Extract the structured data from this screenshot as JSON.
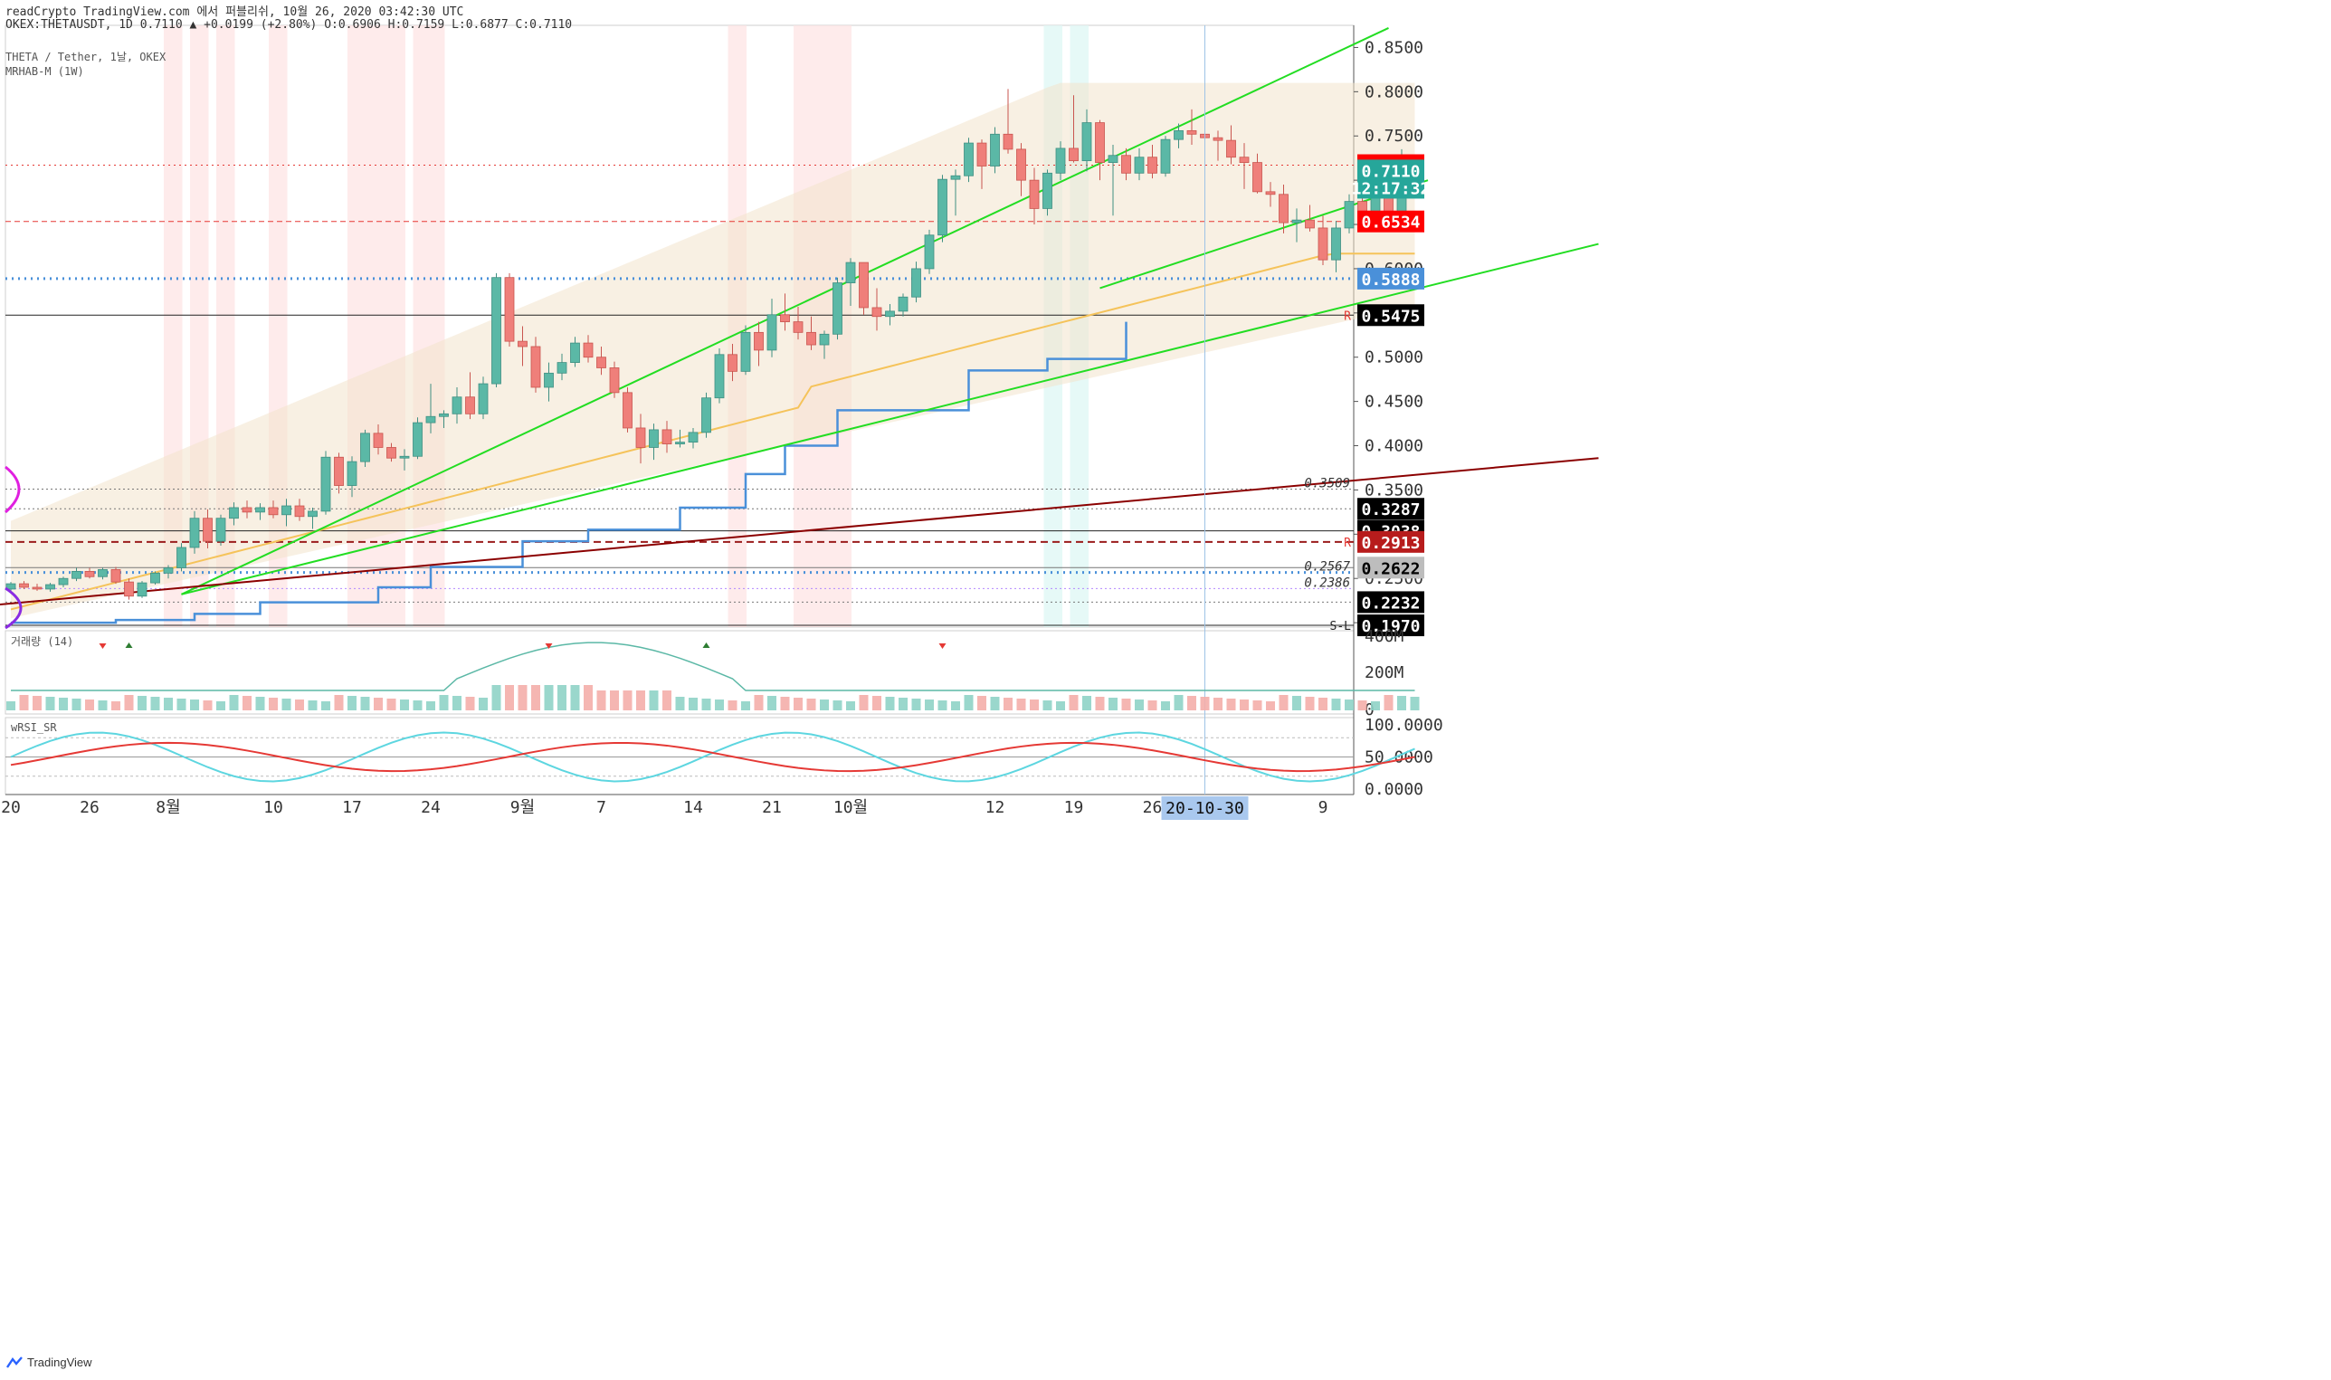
{
  "header": {
    "line1": "readCrypto TradingView.com 에서 퍼블리쉬, 10월 26, 2020 03:42:30 UTC",
    "line2": "OKEX:THETAUSDT, 1D 0.7110 ▲ +0.0199 (+2.80%) O:0.6906 H:0.7159 L:0.6877 C:0.7110",
    "legend_symbol": "THETA / Tether, 1날, OKEX",
    "legend_indicator": "MRHAB-M (1W)"
  },
  "footer": {
    "brand": "TradingView"
  },
  "colors": {
    "up": "#5bb8a6",
    "down": "#ef7f7a",
    "green_line": "#22dd22",
    "blue_line": "#4a90d9",
    "red_line": "#8b0000",
    "yellow_line": "#f5c35a"
  },
  "chart_data": [
    {
      "type": "candlestick",
      "symbol": "OKEX:THETAUSDT",
      "interval": "1D",
      "ylim": [
        0.195,
        0.875
      ],
      "y_axis_ticks": [
        0.2,
        0.25,
        0.3,
        0.35,
        0.4,
        0.45,
        0.5,
        0.55,
        0.6,
        0.65,
        0.7,
        0.75,
        0.8,
        0.85
      ],
      "x_axis_ticks": [
        "20",
        "26",
        "8월",
        "10",
        "17",
        "24",
        "9월",
        "7",
        "14",
        "21",
        "10월",
        "12",
        "19",
        "26",
        "2",
        "9"
      ],
      "x_tick_bars": [
        0,
        6,
        12,
        20,
        26,
        32,
        39,
        45,
        52,
        58,
        64,
        75,
        81,
        87,
        94,
        100
      ],
      "crosshair_date": "20-10-30",
      "crosshair_bar": 91,
      "candles_ohlc": [
        [
          0.238,
          0.246,
          0.235,
          0.244
        ],
        [
          0.244,
          0.247,
          0.238,
          0.24
        ],
        [
          0.24,
          0.244,
          0.236,
          0.238
        ],
        [
          0.238,
          0.245,
          0.235,
          0.243
        ],
        [
          0.243,
          0.252,
          0.24,
          0.25
        ],
        [
          0.25,
          0.262,
          0.247,
          0.258
        ],
        [
          0.258,
          0.262,
          0.25,
          0.252
        ],
        [
          0.252,
          0.262,
          0.249,
          0.26
        ],
        [
          0.26,
          0.263,
          0.244,
          0.246
        ],
        [
          0.246,
          0.25,
          0.226,
          0.23
        ],
        [
          0.23,
          0.247,
          0.228,
          0.245
        ],
        [
          0.245,
          0.258,
          0.243,
          0.256
        ],
        [
          0.256,
          0.265,
          0.25,
          0.262
        ],
        [
          0.262,
          0.29,
          0.258,
          0.285
        ],
        [
          0.285,
          0.326,
          0.278,
          0.318
        ],
        [
          0.318,
          0.328,
          0.284,
          0.292
        ],
        [
          0.292,
          0.322,
          0.287,
          0.318
        ],
        [
          0.318,
          0.336,
          0.31,
          0.33
        ],
        [
          0.33,
          0.338,
          0.318,
          0.325
        ],
        [
          0.325,
          0.335,
          0.316,
          0.33
        ],
        [
          0.33,
          0.338,
          0.318,
          0.322
        ],
        [
          0.322,
          0.34,
          0.309,
          0.332
        ],
        [
          0.332,
          0.34,
          0.315,
          0.32
        ],
        [
          0.32,
          0.33,
          0.306,
          0.326
        ],
        [
          0.326,
          0.394,
          0.322,
          0.387
        ],
        [
          0.387,
          0.392,
          0.346,
          0.355
        ],
        [
          0.355,
          0.388,
          0.342,
          0.382
        ],
        [
          0.382,
          0.418,
          0.376,
          0.414
        ],
        [
          0.414,
          0.424,
          0.39,
          0.398
        ],
        [
          0.398,
          0.403,
          0.382,
          0.386
        ],
        [
          0.386,
          0.396,
          0.372,
          0.388
        ],
        [
          0.388,
          0.432,
          0.385,
          0.426
        ],
        [
          0.426,
          0.47,
          0.414,
          0.433
        ],
        [
          0.433,
          0.44,
          0.42,
          0.436
        ],
        [
          0.436,
          0.466,
          0.425,
          0.455
        ],
        [
          0.455,
          0.483,
          0.43,
          0.436
        ],
        [
          0.436,
          0.478,
          0.43,
          0.47
        ],
        [
          0.47,
          0.595,
          0.466,
          0.59
        ],
        [
          0.59,
          0.595,
          0.512,
          0.518
        ],
        [
          0.518,
          0.535,
          0.49,
          0.512
        ],
        [
          0.512,
          0.523,
          0.46,
          0.466
        ],
        [
          0.466,
          0.494,
          0.45,
          0.482
        ],
        [
          0.482,
          0.504,
          0.474,
          0.494
        ],
        [
          0.494,
          0.523,
          0.489,
          0.516
        ],
        [
          0.516,
          0.525,
          0.494,
          0.5
        ],
        [
          0.5,
          0.512,
          0.48,
          0.488
        ],
        [
          0.488,
          0.495,
          0.454,
          0.46
        ],
        [
          0.46,
          0.466,
          0.415,
          0.42
        ],
        [
          0.42,
          0.436,
          0.38,
          0.398
        ],
        [
          0.398,
          0.425,
          0.384,
          0.418
        ],
        [
          0.418,
          0.428,
          0.392,
          0.402
        ],
        [
          0.402,
          0.418,
          0.398,
          0.404
        ],
        [
          0.404,
          0.42,
          0.397,
          0.415
        ],
        [
          0.415,
          0.46,
          0.409,
          0.454
        ],
        [
          0.454,
          0.51,
          0.448,
          0.503
        ],
        [
          0.503,
          0.515,
          0.473,
          0.484
        ],
        [
          0.484,
          0.536,
          0.48,
          0.528
        ],
        [
          0.528,
          0.54,
          0.49,
          0.508
        ],
        [
          0.508,
          0.566,
          0.5,
          0.548
        ],
        [
          0.548,
          0.572,
          0.53,
          0.54
        ],
        [
          0.54,
          0.557,
          0.52,
          0.528
        ],
        [
          0.528,
          0.546,
          0.508,
          0.514
        ],
        [
          0.514,
          0.53,
          0.498,
          0.526
        ],
        [
          0.526,
          0.59,
          0.52,
          0.584
        ],
        [
          0.584,
          0.612,
          0.558,
          0.607
        ],
        [
          0.607,
          0.607,
          0.548,
          0.556
        ],
        [
          0.556,
          0.578,
          0.53,
          0.546
        ],
        [
          0.546,
          0.56,
          0.536,
          0.552
        ],
        [
          0.552,
          0.572,
          0.546,
          0.568
        ],
        [
          0.568,
          0.608,
          0.562,
          0.6
        ],
        [
          0.6,
          0.644,
          0.594,
          0.638
        ],
        [
          0.638,
          0.706,
          0.63,
          0.701
        ],
        [
          0.701,
          0.712,
          0.66,
          0.705
        ],
        [
          0.705,
          0.748,
          0.698,
          0.742
        ],
        [
          0.742,
          0.746,
          0.69,
          0.716
        ],
        [
          0.716,
          0.76,
          0.708,
          0.752
        ],
        [
          0.752,
          0.803,
          0.73,
          0.735
        ],
        [
          0.735,
          0.742,
          0.682,
          0.7
        ],
        [
          0.7,
          0.714,
          0.65,
          0.668
        ],
        [
          0.668,
          0.712,
          0.66,
          0.708
        ],
        [
          0.708,
          0.744,
          0.7,
          0.736
        ],
        [
          0.736,
          0.796,
          0.72,
          0.722
        ],
        [
          0.722,
          0.78,
          0.71,
          0.765
        ],
        [
          0.765,
          0.768,
          0.7,
          0.72
        ],
        [
          0.72,
          0.74,
          0.66,
          0.728
        ],
        [
          0.728,
          0.736,
          0.7,
          0.708
        ],
        [
          0.708,
          0.736,
          0.7,
          0.726
        ],
        [
          0.726,
          0.74,
          0.702,
          0.708
        ],
        [
          0.708,
          0.75,
          0.704,
          0.746
        ],
        [
          0.746,
          0.764,
          0.736,
          0.756
        ],
        [
          0.756,
          0.78,
          0.74,
          0.752
        ],
        [
          0.752,
          0.76,
          0.73,
          0.748
        ],
        [
          0.748,
          0.756,
          0.722,
          0.745
        ],
        [
          0.745,
          0.762,
          0.718,
          0.726
        ],
        [
          0.726,
          0.742,
          0.69,
          0.72
        ],
        [
          0.72,
          0.73,
          0.685,
          0.687
        ],
        [
          0.687,
          0.698,
          0.67,
          0.684
        ],
        [
          0.684,
          0.695,
          0.64,
          0.652
        ],
        [
          0.652,
          0.668,
          0.63,
          0.655
        ],
        [
          0.655,
          0.672,
          0.642,
          0.646
        ],
        [
          0.646,
          0.66,
          0.604,
          0.61
        ],
        [
          0.61,
          0.654,
          0.596,
          0.646
        ],
        [
          0.646,
          0.684,
          0.64,
          0.676
        ],
        [
          0.676,
          0.681,
          0.655,
          0.665
        ],
        [
          0.665,
          0.712,
          0.654,
          0.69
        ],
        [
          0.69,
          0.708,
          0.644,
          0.66
        ],
        [
          0.66,
          0.735,
          0.654,
          0.691
        ],
        [
          0.691,
          0.7159,
          0.6877,
          0.711
        ]
      ],
      "bar_index_offset": 0,
      "horizontal_levels": [
        {
          "value": 0.717,
          "label": "0.7170",
          "style": "dotted-red"
        },
        {
          "value": 0.6534,
          "label": "0.6534",
          "style": "dashed-red"
        },
        {
          "value": 0.5888,
          "label": "0.5888",
          "style": "dotted-blue"
        },
        {
          "value": 0.5475,
          "label": "0.5475",
          "style": "solid-black",
          "tag": "R"
        },
        {
          "value": 0.3509,
          "label": "0.3509",
          "style": "dotted-gray"
        },
        {
          "value": 0.3287,
          "label": "0.3287",
          "style": "dotted-gray"
        },
        {
          "value": 0.3038,
          "label": "0.3038",
          "style": "solid-black"
        },
        {
          "value": 0.2913,
          "label": "0.2913",
          "style": "dashed-darkred",
          "tag": "R"
        },
        {
          "value": 0.2622,
          "label": "0.2622",
          "style": "solid-gray"
        },
        {
          "value": 0.2567,
          "label": "0.2567",
          "style": "dotted-blue"
        },
        {
          "value": 0.2386,
          "label": "0.2386",
          "style": "dotted-purple"
        },
        {
          "value": 0.2232,
          "label": "0.2232",
          "style": "dotted-gray"
        },
        {
          "value": 0.197,
          "label": "0.1970",
          "style": "solid-black",
          "tag": "S-L"
        }
      ],
      "price_badges": [
        {
          "text": "0.7170",
          "value": 0.717,
          "bg": "#ff0000",
          "fg": "#ffffff"
        },
        {
          "text": "0.7110",
          "value": 0.711,
          "bg": "#26a69a",
          "fg": "#ffffff"
        },
        {
          "text": "12:17:32",
          "value": 0.6915,
          "bg": "#26a69a",
          "fg": "#ffffff"
        },
        {
          "text": "0.6534",
          "value": 0.6534,
          "bg": "#ff0000",
          "fg": "#ffffff"
        },
        {
          "text": "0.5888",
          "value": 0.5888,
          "bg": "#4a90d9",
          "fg": "#ffffff"
        },
        {
          "text": "0.5475",
          "value": 0.5475,
          "bg": "#000000",
          "fg": "#ffffff"
        },
        {
          "text": "0.3287",
          "value": 0.3287,
          "bg": "#000000",
          "fg": "#ffffff"
        },
        {
          "text": "0.3038",
          "value": 0.3038,
          "bg": "#000000",
          "fg": "#ffffff"
        },
        {
          "text": "0.2913",
          "value": 0.2913,
          "bg": "#b71c1c",
          "fg": "#ffffff"
        },
        {
          "text": "0.2622",
          "value": 0.2622,
          "bg": "#bdbdbd",
          "fg": "#000000"
        },
        {
          "text": "0.2232",
          "value": 0.2232,
          "bg": "#000000",
          "fg": "#ffffff"
        },
        {
          "text": "0.1970",
          "value": 0.197,
          "bg": "#000000",
          "fg": "#ffffff"
        }
      ],
      "in_chart_level_labels": [
        "0.3509",
        "0.2567",
        "0.2386"
      ],
      "level_tags": [
        {
          "text": "R",
          "value": 0.5475
        },
        {
          "text": "R",
          "value": 0.2913
        },
        {
          "text": "S-L",
          "value": 0.197
        }
      ],
      "trend_lines": [
        {
          "name": "green-long",
          "from": [
            13,
            0.232
          ],
          "to": [
            105,
            0.872
          ]
        },
        {
          "name": "green-medium",
          "from": [
            13,
            0.232
          ],
          "to": [
            121,
            0.628
          ]
        },
        {
          "name": "darkred",
          "from": [
            -2,
            0.219
          ],
          "to": [
            121,
            0.386
          ]
        },
        {
          "name": "green-short",
          "from": [
            83,
            0.578
          ],
          "to": [
            108,
            0.7
          ]
        }
      ],
      "step_line_blue": [
        [
          0,
          0.2
        ],
        [
          8,
          0.2
        ],
        [
          8,
          0.203
        ],
        [
          14,
          0.203
        ],
        [
          14,
          0.21
        ],
        [
          19,
          0.21
        ],
        [
          19,
          0.223
        ],
        [
          28,
          0.223
        ],
        [
          28,
          0.24
        ],
        [
          32,
          0.24
        ],
        [
          32,
          0.263
        ],
        [
          39,
          0.263
        ],
        [
          39,
          0.292
        ],
        [
          44,
          0.292
        ],
        [
          44,
          0.305
        ],
        [
          51,
          0.305
        ],
        [
          51,
          0.33
        ],
        [
          56,
          0.33
        ],
        [
          56,
          0.368
        ],
        [
          59,
          0.368
        ],
        [
          59,
          0.4
        ],
        [
          63,
          0.4
        ],
        [
          63,
          0.44
        ],
        [
          73,
          0.44
        ],
        [
          73,
          0.485
        ],
        [
          79,
          0.485
        ],
        [
          79,
          0.498
        ],
        [
          85,
          0.498
        ],
        [
          85,
          0.54
        ]
      ],
      "volume_panel": {
        "label": "거래량 (14)",
        "axis": [
          "400M",
          "200M",
          "0"
        ]
      },
      "rsi_panel": {
        "label": "wRSI_SR",
        "axis": [
          "100.0000",
          "50.0000",
          "0.0000"
        ]
      }
    }
  ]
}
